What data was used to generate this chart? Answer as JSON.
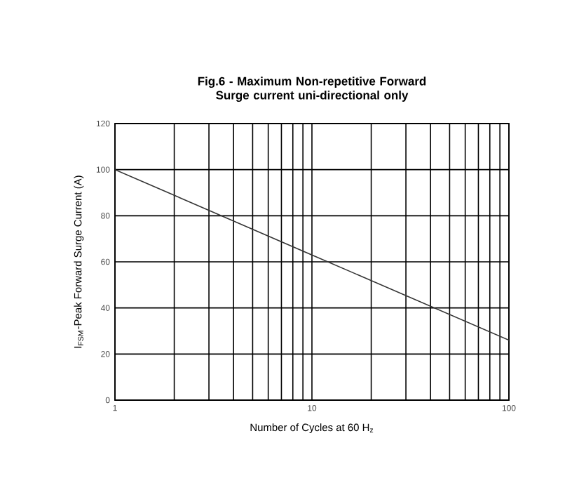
{
  "chart_data": {
    "type": "line",
    "title": "Fig.6 - Maximum Non-repetitive Forward Surge current uni-directional only",
    "xlabel": "Number of Cycles at 60 H$_{z}$",
    "ylabel": "I$_{FSM}$-Peak Forward Surge Current (A)",
    "log": "x",
    "x": [
      1,
      10,
      100
    ],
    "series": [
      {
        "color": "#333333",
        "values": [
          100,
          63,
          26
        ]
      }
    ],
    "xlim": [
      1,
      100
    ],
    "xticks": [
      1,
      10,
      100
    ],
    "ylim": [
      0,
      120
    ],
    "yticks": [
      0,
      20,
      40,
      60,
      80,
      100,
      120
    ],
    "grid": true,
    "marker": "none",
    "line_style": "solid"
  }
}
